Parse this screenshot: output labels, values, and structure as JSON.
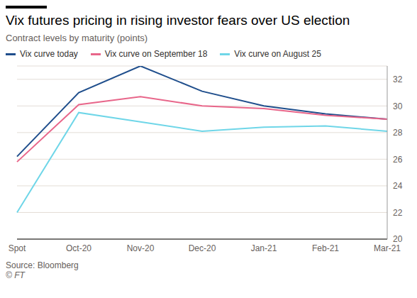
{
  "chart_data": {
    "type": "line",
    "title": "Vix futures pricing in rising investor fears over US election",
    "subtitle": "Contract levels by maturity (points)",
    "source": "Source: Bloomberg",
    "copyright": "© FT",
    "categories": [
      "Spot",
      "Oct-20",
      "Nov-20",
      "Dec-20",
      "Jan-21",
      "Feb-21",
      "Mar-21"
    ],
    "series": [
      {
        "name": "Vix curve today",
        "color": "#1f4e8c",
        "values": [
          26.2,
          31.0,
          33.0,
          31.1,
          30.0,
          29.4,
          29.0
        ]
      },
      {
        "name": "Vix curve on September 18",
        "color": "#e8668a",
        "values": [
          25.8,
          30.1,
          30.7,
          30.0,
          29.8,
          29.3,
          29.0
        ]
      },
      {
        "name": "Vix curve on August 25",
        "color": "#6fd6e8",
        "values": [
          22.0,
          29.5,
          28.8,
          28.1,
          28.4,
          28.5,
          28.1
        ]
      }
    ],
    "ylim": [
      20,
      33
    ],
    "yticks": [
      20,
      22,
      24,
      26,
      28,
      30,
      32
    ],
    "grid": true
  }
}
